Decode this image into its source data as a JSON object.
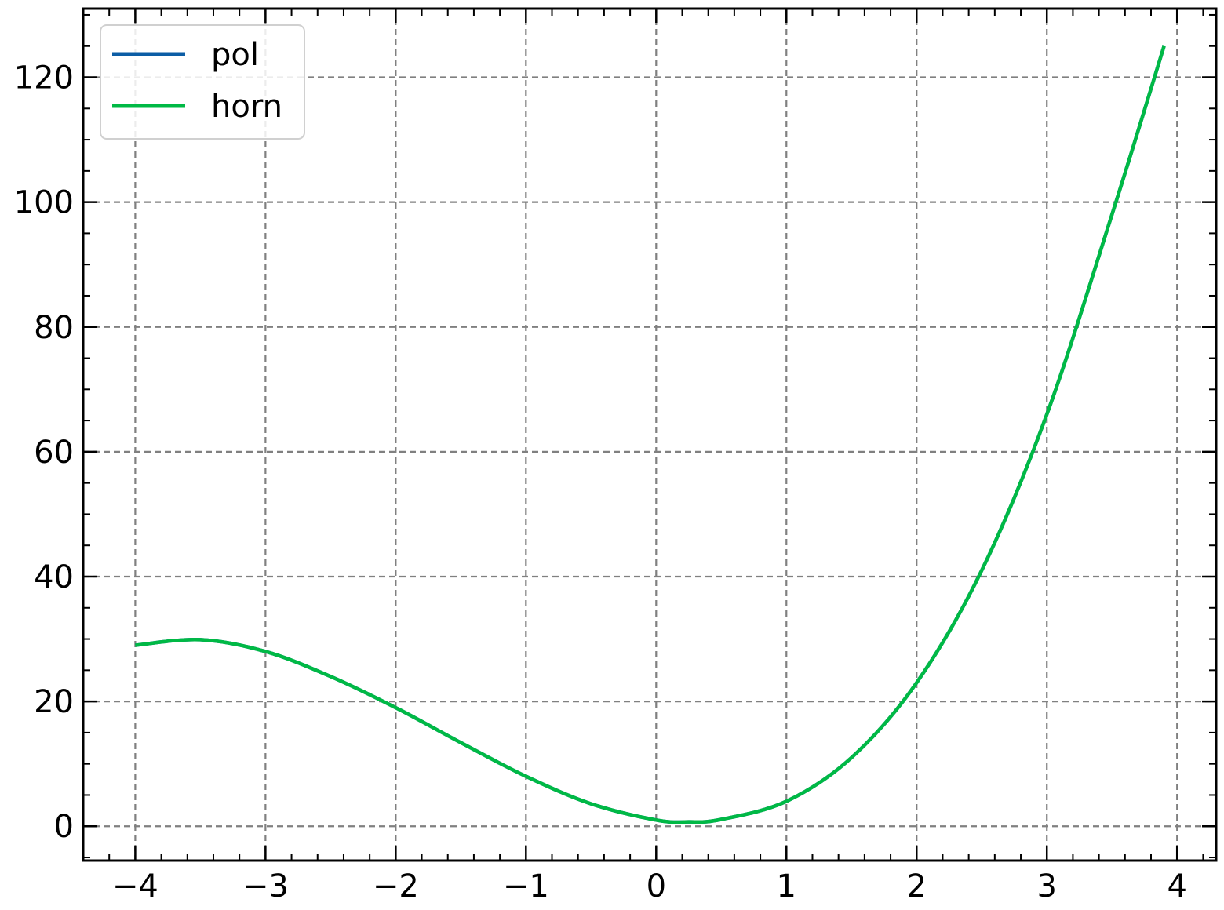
{
  "chart_data": {
    "type": "line",
    "title": "",
    "xlabel": "",
    "ylabel": "",
    "xlim": [
      -4.4,
      4.3
    ],
    "ylim": [
      -5.5,
      131
    ],
    "x_ticks": [
      -4,
      -3,
      -2,
      -1,
      0,
      1,
      2,
      3,
      4
    ],
    "x_tick_labels": [
      "−4",
      "−3",
      "−2",
      "−1",
      "0",
      "1",
      "2",
      "3",
      "4"
    ],
    "y_ticks": [
      0,
      20,
      40,
      60,
      80,
      100,
      120
    ],
    "y_tick_labels": [
      "0",
      "20",
      "40",
      "60",
      "80",
      "100",
      "120"
    ],
    "grid": true,
    "legend_position": "top-left",
    "series": [
      {
        "name": "pol",
        "color": "#0C5DA5",
        "x": [
          -4.0,
          -3.5,
          -3.0,
          -2.5,
          -2.0,
          -1.5,
          -1.0,
          -0.5,
          0.0,
          0.25,
          0.5,
          1.0,
          1.5,
          2.0,
          2.5,
          3.0,
          3.5,
          3.9
        ],
        "y": [
          29.0,
          29.9,
          28.0,
          24.0,
          19.0,
          13.4,
          8.0,
          3.6,
          1.0,
          0.7,
          1.1,
          4.0,
          11.0,
          23.0,
          41.0,
          66.0,
          98.0,
          125.0
        ]
      },
      {
        "name": "horn",
        "color": "#00B945",
        "x": [
          -4.0,
          -3.5,
          -3.0,
          -2.5,
          -2.0,
          -1.5,
          -1.0,
          -0.5,
          0.0,
          0.25,
          0.5,
          1.0,
          1.5,
          2.0,
          2.5,
          3.0,
          3.5,
          3.9
        ],
        "y": [
          29.0,
          29.9,
          28.0,
          24.0,
          19.0,
          13.4,
          8.0,
          3.6,
          1.0,
          0.7,
          1.1,
          4.0,
          11.0,
          23.0,
          41.0,
          66.0,
          98.0,
          125.0
        ]
      }
    ]
  }
}
